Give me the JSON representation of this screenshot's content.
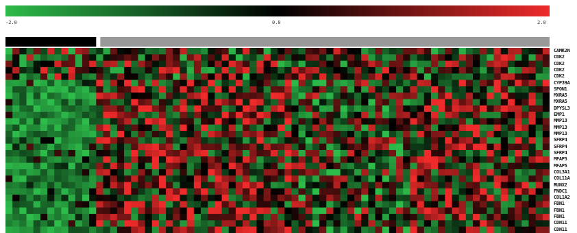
{
  "chart_data": {
    "type": "heatmap",
    "colorscale": {
      "min": -2.0,
      "mid": 0.0,
      "max": 2.0,
      "min_label": "-2.0",
      "mid_label": "0.0",
      "max_label": "2.0",
      "colors": [
        "#2dbb4a",
        "#000000",
        "#ee2a2a"
      ]
    },
    "n_columns": 78,
    "column_groups": [
      {
        "count": 13,
        "color": "#000000"
      },
      {
        "count": 65,
        "color": "#999999"
      }
    ],
    "row_labels": [
      "CAMK2N",
      "CDK2",
      "CDK2",
      "CDK2",
      "CDK2",
      "CYP39A",
      "SPON1",
      "MXRA5",
      "MXRA5",
      "DPYSL3",
      "EMP1",
      "MMP13",
      "MMP13",
      "MMP13",
      "SFRP4",
      "SFRP4",
      "SFRP4",
      "MFAP5",
      "MFAP5",
      "COL3A1",
      "COL11A",
      "RUNX2",
      "FNDC1",
      "COL1A2",
      "FBN1",
      "FBN1",
      "FBN1",
      "CDH11",
      "CDH11"
    ]
  }
}
